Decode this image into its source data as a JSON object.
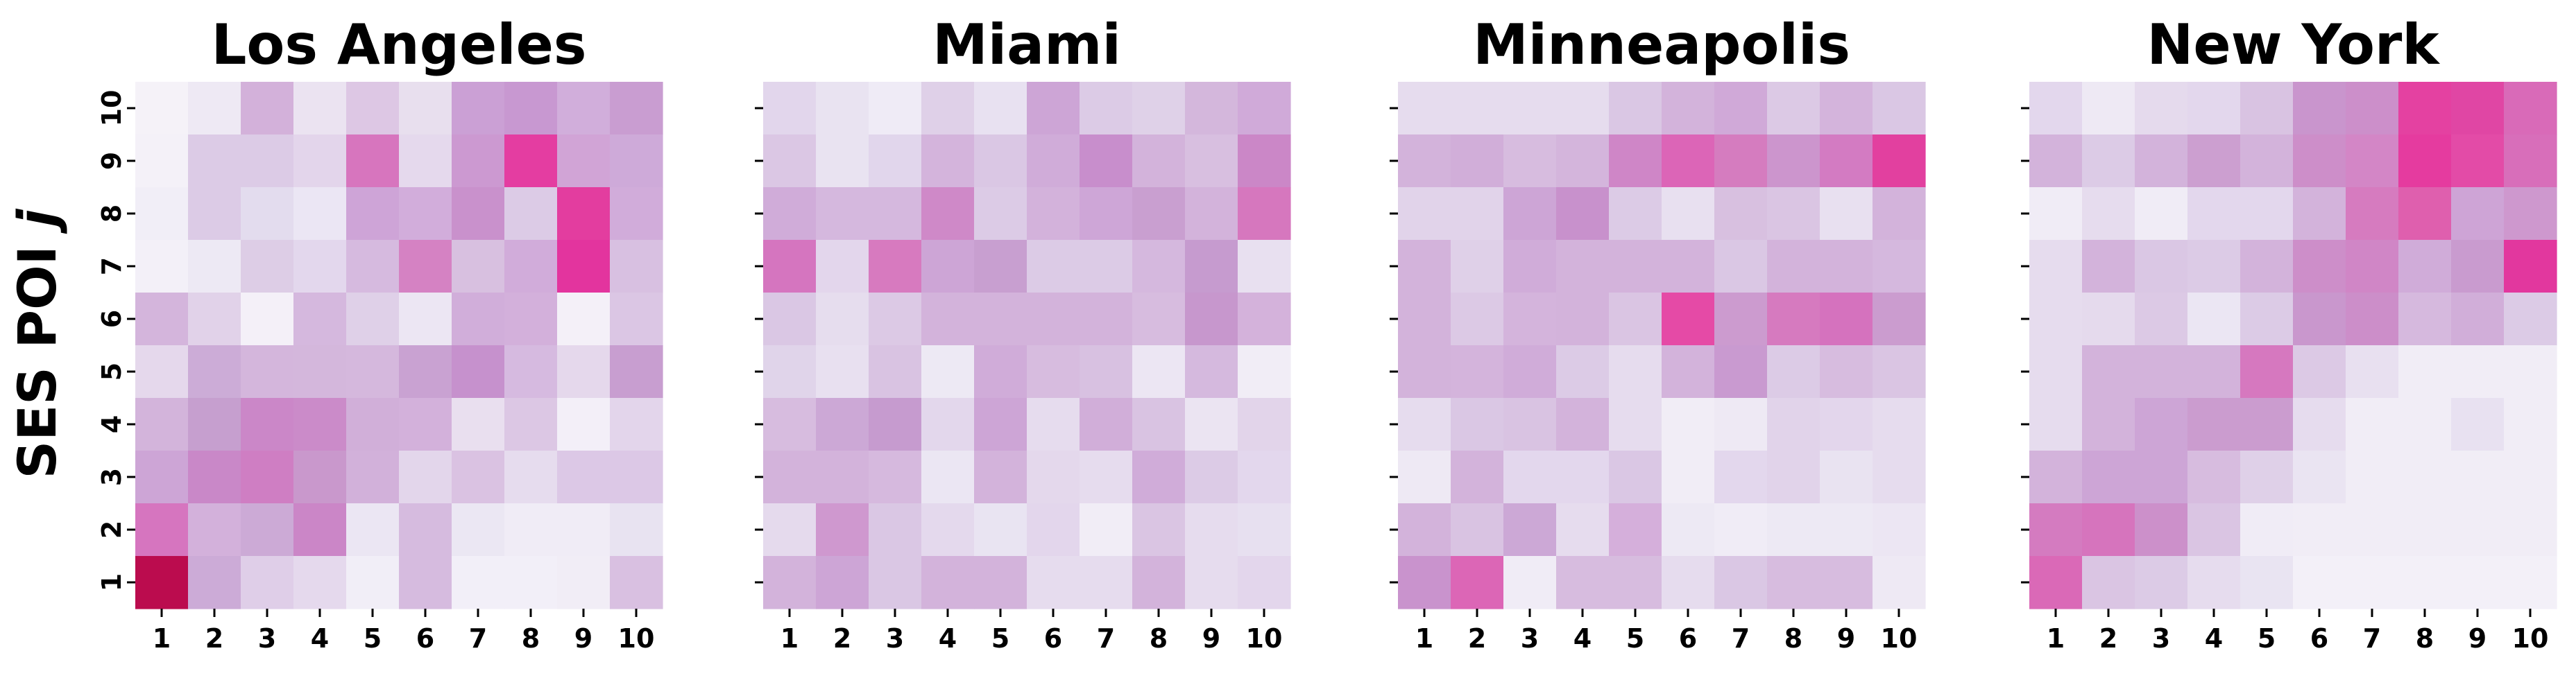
{
  "figure": {
    "ylabel": "SES POI j",
    "ylabel_main": "SES POI ",
    "ylabel_italic": "j"
  },
  "chart_data": [
    {
      "type": "heatmap",
      "title": "Los Angeles",
      "x_ticks": [
        "1",
        "2",
        "3",
        "4",
        "5",
        "6",
        "7",
        "8",
        "9",
        "10"
      ],
      "y_ticks": [
        "1",
        "2",
        "3",
        "4",
        "5",
        "6",
        "7",
        "8",
        "9",
        "10"
      ],
      "y_labels_shown": true,
      "rows_top_to_bottom": [
        [
          "#f5f2f8",
          "#eee9f4",
          "#d3b1da",
          "#ebe3f1",
          "#ddc7e4",
          "#e8dfee",
          "#cba0d5",
          "#c898d1",
          "#d1aedb",
          "#c99dd1"
        ],
        [
          "#f4f1f8",
          "#dccbe6",
          "#dccbe6",
          "#e3d5eb",
          "#d775be",
          "#e5d9ed",
          "#cc99d1",
          "#e43da1",
          "#d1a4d6",
          "#ceaad9"
        ],
        [
          "#f1eef7",
          "#dccbe6",
          "#e3dcee",
          "#ebe6f4",
          "#cea4d7",
          "#d2addb",
          "#c991cc",
          "#dccbe6",
          "#e33d9f",
          "#d1acda"
        ],
        [
          "#f3f0f8",
          "#ede9f4",
          "#ddcde6",
          "#e3d7ed",
          "#d6badf",
          "#d582c3",
          "#d8c0e0",
          "#d1acda",
          "#e3349e",
          "#d8c0e1"
        ],
        [
          "#d4b5dc",
          "#e1d2e9",
          "#f4f0f8",
          "#d5b8de",
          "#dfd0e8",
          "#ece6f3",
          "#d1aeda",
          "#d3b0db",
          "#f4f0f8",
          "#dbc6e4"
        ],
        [
          "#e5d8ec",
          "#ccacd7",
          "#d4b6dc",
          "#d4b7dc",
          "#d5b8dd",
          "#c9a2d2",
          "#c691cd",
          "#d6bae0",
          "#e5d8ec",
          "#c89ed0"
        ],
        [
          "#d3b4db",
          "#c69fcf",
          "#cb87c8",
          "#cb8bc9",
          "#d1afd9",
          "#d3b1db",
          "#e9dfef",
          "#dcc7e4",
          "#f3eff8",
          "#e3d5eb"
        ],
        [
          "#cda5d6",
          "#c988c8",
          "#cf7ec3",
          "#c998cc",
          "#d2b1da",
          "#e3d6eb",
          "#dac2e2",
          "#e6dcee",
          "#dcc8e6",
          "#dcc8e6"
        ],
        [
          "#d675bf",
          "#d3b1db",
          "#ccaad6",
          "#cb86c7",
          "#ebe6f3",
          "#d6bbdf",
          "#ebe7f3",
          "#f0ecf6",
          "#f0ecf6",
          "#e8e3f1"
        ],
        [
          "#bb0c4e",
          "#ccabd7",
          "#dfcee8",
          "#e5d9ed",
          "#f1eef7",
          "#d6bbdf",
          "#f2eff8",
          "#f2eff8",
          "#f1edf6",
          "#d9c0e1"
        ]
      ]
    },
    {
      "type": "heatmap",
      "title": "Miami",
      "x_ticks": [
        "1",
        "2",
        "3",
        "4",
        "5",
        "6",
        "7",
        "8",
        "9",
        "10"
      ],
      "y_ticks": [
        "1",
        "2",
        "3",
        "4",
        "5",
        "6",
        "7",
        "8",
        "9",
        "10"
      ],
      "y_labels_shown": false,
      "rows_top_to_bottom": [
        [
          "#e2d6ec",
          "#e9e3f1",
          "#efebf6",
          "#dfd0e8",
          "#e8e1f1",
          "#cda5d6",
          "#dccbe6",
          "#dfd1e8",
          "#d4b7dc",
          "#d0aad9"
        ],
        [
          "#dbc7e4",
          "#e9e3f1",
          "#e1d6ec",
          "#d4b4dc",
          "#dac7e4",
          "#d0acd9",
          "#c88ecc",
          "#d3b3db",
          "#d8bfe0",
          "#cb87c7"
        ],
        [
          "#d0acd9",
          "#d5b8de",
          "#d5b8de",
          "#cf89c8",
          "#dccbe6",
          "#d3b2db",
          "#cea6d7",
          "#c99fd0",
          "#d3b3db",
          "#d677be"
        ],
        [
          "#d575bf",
          "#e3d6ec",
          "#d77abf",
          "#cda5d6",
          "#c89fd0",
          "#dccbe6",
          "#dccbe6",
          "#d5b8de",
          "#c69bcf",
          "#e8e0f0"
        ],
        [
          "#dac7e4",
          "#e6ddee",
          "#dcc9e5",
          "#d3b3db",
          "#d3b3db",
          "#d3b3db",
          "#d3b3db",
          "#d7bcdf",
          "#c797cd",
          "#d4b2db"
        ],
        [
          "#e0d4ea",
          "#e8e0f0",
          "#d9c3e2",
          "#ede9f4",
          "#d0acd9",
          "#d7bcdf",
          "#d8c1e1",
          "#ece6f3",
          "#d5b9de",
          "#f1edf6"
        ],
        [
          "#d7bcdf",
          "#cca8d6",
          "#c69bcf",
          "#e3d7ec",
          "#cda5d6",
          "#e6dcee",
          "#d1aed9",
          "#d9c3e2",
          "#ebe4f2",
          "#e2d4ea"
        ],
        [
          "#d3b3db",
          "#d3b3db",
          "#d6b9de",
          "#ebe6f3",
          "#d3b3db",
          "#e4d8ec",
          "#e6dcee",
          "#d0acd9",
          "#dccbe6",
          "#e3d7ed"
        ],
        [
          "#e5daed",
          "#cf98cf",
          "#dac7e4",
          "#e4d9ed",
          "#e9e4f2",
          "#e3d6ec",
          "#f1edf6",
          "#dac5e3",
          "#e6dcee",
          "#e7e0f0"
        ],
        [
          "#d3b3db",
          "#cda5d6",
          "#dac7e4",
          "#d3b3db",
          "#d3b3db",
          "#e6dcee",
          "#e6dcee",
          "#d3b3db",
          "#e6dcee",
          "#e3d6ec"
        ]
      ]
    },
    {
      "type": "heatmap",
      "title": "Minneapolis",
      "x_ticks": [
        "1",
        "2",
        "3",
        "4",
        "5",
        "6",
        "7",
        "8",
        "9",
        "10"
      ],
      "y_ticks": [
        "1",
        "2",
        "3",
        "4",
        "5",
        "6",
        "7",
        "8",
        "9",
        "10"
      ],
      "y_labels_shown": false,
      "rows_top_to_bottom": [
        [
          "#e6dcee",
          "#e6dcee",
          "#e6dcee",
          "#e6dcee",
          "#dac7e4",
          "#d3b3db",
          "#d0a9d8",
          "#dcc9e5",
          "#d4b4dc",
          "#dac7e4"
        ],
        [
          "#d3b3db",
          "#d1aed9",
          "#d7bcdf",
          "#d4b5dc",
          "#cf86c7",
          "#dc65b7",
          "#d57cbf",
          "#cc95cd",
          "#d37bc2",
          "#e2409f"
        ],
        [
          "#e1d3ea",
          "#e1d3ea",
          "#cda5d6",
          "#c891cc",
          "#dccbe6",
          "#e8e0f0",
          "#d8c0e0",
          "#dac5e3",
          "#e8e0f0",
          "#d3b3db"
        ],
        [
          "#d3b3db",
          "#dfd0e8",
          "#d0acd9",
          "#d3b3db",
          "#d3b3db",
          "#d3b3db",
          "#dac7e4",
          "#d3b3db",
          "#d3b3db",
          "#d5b8de"
        ],
        [
          "#d3b3db",
          "#dcc9e5",
          "#d4b4dc",
          "#d3b3db",
          "#dac5e3",
          "#e54aa6",
          "#cc9bcf",
          "#d67abf",
          "#d572be",
          "#cb9ccf"
        ],
        [
          "#d3b3db",
          "#d4b4dc",
          "#d0acd9",
          "#dccbe6",
          "#e6dcee",
          "#d3b3db",
          "#c99ad0",
          "#dccbe6",
          "#d7bcdf",
          "#dac5e3"
        ],
        [
          "#e6dcee",
          "#dac7e4",
          "#d9c3e2",
          "#d3b3db",
          "#e6dcee",
          "#f1edf6",
          "#eee9f4",
          "#e1d3ea",
          "#e3d6ec",
          "#e6dcee"
        ],
        [
          "#eee9f4",
          "#d3b3db",
          "#e3d7ed",
          "#e3d7ed",
          "#dac7e4",
          "#f1edf6",
          "#e3d7ed",
          "#e1d3ea",
          "#e9e3f1",
          "#e6dcee"
        ],
        [
          "#d3b3db",
          "#d9c3e2",
          "#cca8d6",
          "#e6dcee",
          "#d5afdb",
          "#ede9f4",
          "#f0ecf6",
          "#ede9f4",
          "#ede9f4",
          "#ece6f3"
        ],
        [
          "#c993cd",
          "#dc66b6",
          "#f0ecf6",
          "#d7bcdf",
          "#d7bcdf",
          "#e6dcee",
          "#dac7e4",
          "#d7bcdf",
          "#d7bcdf",
          "#eee9f4"
        ]
      ]
    },
    {
      "type": "heatmap",
      "title": "New York",
      "x_ticks": [
        "1",
        "2",
        "3",
        "4",
        "5",
        "6",
        "7",
        "8",
        "9",
        "10"
      ],
      "y_ticks": [
        "1",
        "2",
        "3",
        "4",
        "5",
        "6",
        "7",
        "8",
        "9",
        "10"
      ],
      "y_labels_shown": false,
      "rows_top_to_bottom": [
        [
          "#e3d7ed",
          "#eee9f4",
          "#e5daed",
          "#e3d7ed",
          "#d9c3e2",
          "#c995cd",
          "#cc8fca",
          "#e441a1",
          "#e046a4",
          "#d96ab8"
        ],
        [
          "#d3b3db",
          "#dccbe6",
          "#d3b3db",
          "#cc9fd0",
          "#d3b3db",
          "#cd8ec9",
          "#d386c6",
          "#e53b9f",
          "#e34ba7",
          "#d86eba"
        ],
        [
          "#f0ecf6",
          "#e6dcee",
          "#f0ecf6",
          "#e3d7ed",
          "#e3d7ed",
          "#d3b3db",
          "#d67bbf",
          "#df5fae",
          "#cea4d6",
          "#ce98ce"
        ],
        [
          "#e6dcee",
          "#d3b3db",
          "#dac7e4",
          "#dccbe6",
          "#d3b3db",
          "#cd8ec9",
          "#d086c6",
          "#d0acd9",
          "#c99bcf",
          "#e2379e"
        ],
        [
          "#e6dcee",
          "#e5daed",
          "#dcc9e5",
          "#ebe6f3",
          "#dccbe6",
          "#c997cd",
          "#cc8ec9",
          "#d6b9de",
          "#d1aed9",
          "#dccbe6"
        ],
        [
          "#e6dcee",
          "#d3b3db",
          "#d3b3db",
          "#d3b3db",
          "#d678bf",
          "#dcc9e5",
          "#e8e0f0",
          "#f1edf6",
          "#f1edf6",
          "#f1edf6"
        ],
        [
          "#e6dcee",
          "#d3b3db",
          "#cda5d6",
          "#cb9ccf",
          "#cb9ccf",
          "#e6dcee",
          "#f1edf6",
          "#f1edf6",
          "#e8e1f1",
          "#f1edf6"
        ],
        [
          "#d3b3db",
          "#cda5d6",
          "#cda5d6",
          "#d7bcdf",
          "#dfd0e8",
          "#eae4f2",
          "#f1edf6",
          "#f1edf6",
          "#f1edf6",
          "#f1edf6"
        ],
        [
          "#d47bc0",
          "#d674bd",
          "#cc90ca",
          "#dac5e3",
          "#f0ecf6",
          "#f1edf6",
          "#f1edf6",
          "#f1edf6",
          "#f1edf6",
          "#f1edf6"
        ],
        [
          "#da69b7",
          "#dac5e3",
          "#dccbe6",
          "#e6dcee",
          "#e9e4f2",
          "#f3f0f8",
          "#f3f0f8",
          "#f3f0f8",
          "#f3f0f8",
          "#f3f0f8"
        ]
      ]
    }
  ]
}
